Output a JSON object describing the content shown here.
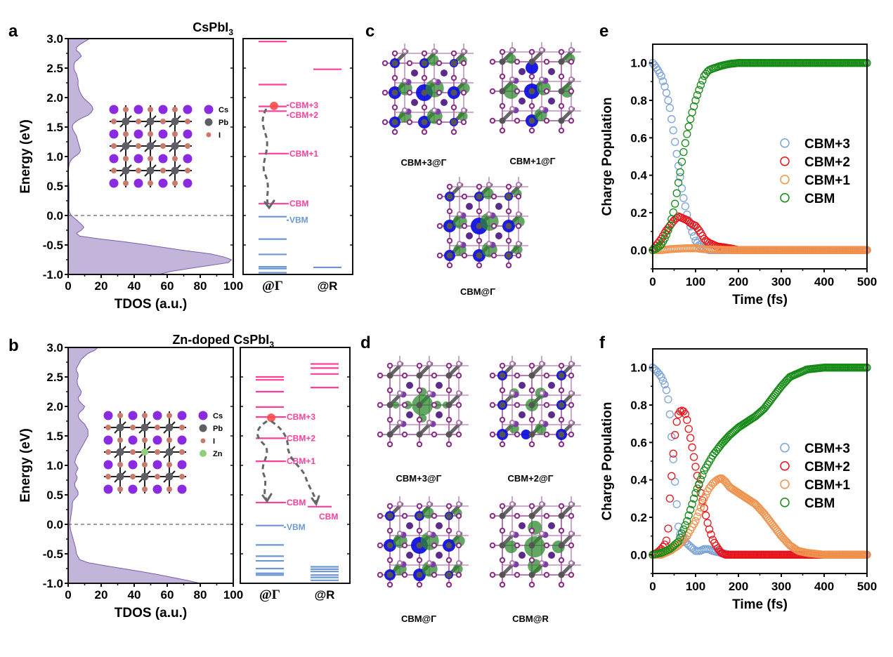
{
  "figure": {
    "panel_labels": [
      "a",
      "b",
      "c",
      "d",
      "e",
      "f"
    ]
  },
  "chart_data": [
    {
      "id": "a",
      "type": "area",
      "title": "CsPbI",
      "title_sub": "3",
      "xlabel": "TDOS (a.u.)",
      "ylabel": "Energy (eV)",
      "xlim": [
        0,
        100
      ],
      "ylim": [
        -1.0,
        3.0
      ],
      "xticks": [
        "0",
        "20",
        "40",
        "60",
        "80",
        "100"
      ],
      "yticks": [
        "3.0",
        "2.5",
        "2.0",
        "1.5",
        "1.0",
        "0.5",
        "0.0",
        "-0.5",
        "-1.0"
      ],
      "fermi_line": 0.0,
      "fill_color": "#c3b5d9",
      "line_color": "#7a5cae",
      "energy": [
        3.0,
        2.95,
        2.9,
        2.85,
        2.8,
        2.75,
        2.7,
        2.65,
        2.6,
        2.55,
        2.5,
        2.45,
        2.4,
        2.3,
        2.2,
        2.1,
        2.0,
        1.95,
        1.9,
        1.85,
        1.8,
        1.75,
        1.7,
        1.65,
        1.6,
        1.55,
        1.5,
        1.45,
        1.4,
        1.35,
        1.3,
        1.25,
        1.2,
        1.15,
        1.1,
        1.05,
        1.0,
        0.95,
        0.9,
        0.85,
        0.8,
        0.7,
        0.6,
        0.5,
        0.4,
        0.3,
        0.2,
        0.1,
        0.05,
        0.0,
        -0.05,
        -0.1,
        -0.15,
        -0.2,
        -0.25,
        -0.3,
        -0.35,
        -0.4,
        -0.45,
        -0.5,
        -0.55,
        -0.6,
        -0.65,
        -0.7,
        -0.75,
        -0.8,
        -0.85,
        -0.9,
        -0.95,
        -1.0
      ],
      "tdos": [
        13,
        10,
        7,
        5,
        5,
        7,
        8,
        6,
        4,
        3.5,
        3.5,
        4,
        5,
        6,
        6,
        7,
        9,
        11,
        13,
        14.5,
        15,
        14,
        12,
        8,
        5,
        3,
        2.5,
        3,
        4,
        5,
        5.5,
        6,
        6.5,
        7,
        7.5,
        6.5,
        4,
        2,
        1,
        0.5,
        0.3,
        0.2,
        0.3,
        0.5,
        0.6,
        0.6,
        0.5,
        0.5,
        0.8,
        2,
        4,
        6,
        8,
        9.5,
        8,
        5,
        7,
        20,
        35,
        48,
        60,
        72,
        86,
        94,
        99,
        97,
        85,
        73,
        62,
        55
      ]
    },
    {
      "id": "a-levels",
      "type": "levels",
      "ylim": [
        -1.0,
        3.0
      ],
      "k_points": [
        "@Γ",
        "@R"
      ],
      "cb_color": "#ff3e9a",
      "vb_color": "#6c97d3",
      "gamma_cb": [
        2.95,
        2.22,
        1.85,
        1.77,
        1.05,
        0.2
      ],
      "gamma_vb": [
        -0.02,
        -0.4,
        -0.66,
        -0.87,
        -0.9,
        -0.97
      ],
      "r_cb": [
        2.48
      ],
      "r_vb": [
        -0.88
      ],
      "labels": [
        {
          "text": "CBM+3",
          "e": 1.87
        },
        {
          "text": "CBM+2",
          "e": 1.7
        },
        {
          "text": "CBM+1",
          "e": 1.05
        },
        {
          "text": "CBM",
          "e": 0.2
        },
        {
          "text": "VBM",
          "e": -0.08,
          "kind": "vb"
        }
      ]
    },
    {
      "id": "b",
      "type": "area",
      "title": "Zn-doped CsPbI",
      "title_sub": "3",
      "xlabel": "TDOS (a.u.)",
      "ylabel": "Energy (eV)",
      "xlim": [
        0,
        100
      ],
      "ylim": [
        -1.0,
        3.0
      ],
      "xticks": [
        "0",
        "20",
        "40",
        "60",
        "80",
        "100"
      ],
      "yticks": [
        "3.0",
        "2.5",
        "2.0",
        "1.5",
        "1.0",
        "0.5",
        "0.0",
        "-0.5",
        "-1.0"
      ],
      "fermi_line": 0.0,
      "fill_color": "#c3b5d9",
      "line_color": "#7a5cae",
      "energy": [
        3.0,
        2.95,
        2.9,
        2.85,
        2.8,
        2.75,
        2.7,
        2.65,
        2.6,
        2.55,
        2.5,
        2.45,
        2.4,
        2.35,
        2.3,
        2.25,
        2.2,
        2.15,
        2.1,
        2.05,
        2.0,
        1.95,
        1.9,
        1.85,
        1.8,
        1.75,
        1.7,
        1.65,
        1.6,
        1.55,
        1.5,
        1.45,
        1.4,
        1.35,
        1.3,
        1.25,
        1.2,
        1.15,
        1.1,
        1.05,
        1.0,
        0.95,
        0.9,
        0.85,
        0.8,
        0.75,
        0.7,
        0.65,
        0.6,
        0.55,
        0.5,
        0.45,
        0.4,
        0.35,
        0.3,
        0.2,
        0.1,
        0.0,
        -0.1,
        -0.2,
        -0.3,
        -0.4,
        -0.5,
        -0.55,
        -0.6,
        -0.65,
        -0.7,
        -0.75,
        -0.8,
        -0.85,
        -0.9,
        -0.95,
        -1.0
      ],
      "tdos": [
        18,
        16,
        12,
        10,
        8,
        7,
        6,
        5,
        5,
        6,
        6,
        5.5,
        5.5,
        6,
        7,
        8,
        7.5,
        6,
        6.5,
        8,
        10,
        9,
        7,
        6,
        6.5,
        8,
        10,
        11,
        12,
        12,
        12,
        11,
        10,
        9,
        8,
        7,
        6,
        5,
        4.5,
        4,
        5,
        6,
        5,
        4.5,
        5.5,
        5,
        4,
        4,
        5,
        6,
        6,
        4.5,
        3,
        2.5,
        2.5,
        2,
        1.5,
        1,
        1.5,
        2.5,
        3.5,
        4.5,
        5,
        6,
        7,
        12,
        22,
        33,
        44,
        54,
        63,
        72,
        80
      ]
    },
    {
      "id": "b-levels",
      "type": "levels",
      "ylim": [
        -1.0,
        3.0
      ],
      "k_points": [
        "@Γ",
        "@R"
      ],
      "cb_color": "#ff3e9a",
      "vb_color": "#6c97d3",
      "gamma_cb": [
        2.5,
        2.45,
        2.25,
        1.99,
        1.82,
        1.46,
        1.07,
        0.37
      ],
      "gamma_vb": [
        -0.02,
        -0.35,
        -0.54,
        -0.62,
        -0.75,
        -0.83,
        -0.86
      ],
      "r_cb": [
        2.72,
        2.65,
        2.55,
        2.32
      ],
      "r_cb_label": "CBM",
      "r_cbm": 0.3,
      "r_vb": [
        -0.72,
        -0.76,
        -0.8,
        -0.86,
        -0.9,
        -0.95
      ],
      "labels": [
        {
          "text": "CBM+3",
          "e": 1.82
        },
        {
          "text": "CBM+2",
          "e": 1.46
        },
        {
          "text": "CBM+1",
          "e": 1.07
        },
        {
          "text": "CBM",
          "e": 0.37
        },
        {
          "text": "VBM",
          "e": -0.05,
          "kind": "vb"
        }
      ]
    },
    {
      "id": "e",
      "type": "scatter",
      "xlabel": "Time (fs)",
      "ylabel": "Charge Population",
      "xlim": [
        0,
        500
      ],
      "ylim": [
        -0.1,
        1.1
      ],
      "xticks": [
        "0",
        "100",
        "200",
        "300",
        "400",
        "500"
      ],
      "yticks": [
        "1.0",
        "0.8",
        "0.6",
        "0.4",
        "0.2",
        "0.0"
      ],
      "legend_position": "center-right",
      "series": [
        {
          "name": "CBM+3",
          "color": "#7aa3d9",
          "x": [
            0,
            10,
            20,
            30,
            40,
            50,
            60,
            70,
            80,
            90,
            100,
            110,
            120,
            130,
            150,
            200,
            300,
            400,
            500
          ],
          "y": [
            1.0,
            0.97,
            0.93,
            0.86,
            0.76,
            0.61,
            0.45,
            0.3,
            0.19,
            0.11,
            0.05,
            0.02,
            0.01,
            0.0,
            0.0,
            0.0,
            0.0,
            0.0,
            0.0
          ]
        },
        {
          "name": "CBM+2",
          "color": "#e8141a",
          "x": [
            0,
            10,
            20,
            30,
            40,
            50,
            60,
            70,
            80,
            90,
            100,
            110,
            120,
            130,
            150,
            180,
            200,
            300,
            500
          ],
          "y": [
            0.0,
            0.03,
            0.06,
            0.1,
            0.13,
            0.16,
            0.18,
            0.17,
            0.16,
            0.14,
            0.13,
            0.1,
            0.06,
            0.04,
            0.02,
            0.01,
            0.0,
            0.0,
            0.0
          ]
        },
        {
          "name": "CBM+1",
          "color": "#f0934e",
          "x": [
            0,
            20,
            40,
            60,
            80,
            100,
            120,
            150,
            200,
            300,
            500
          ],
          "y": [
            0.0,
            0.0,
            0.005,
            0.008,
            0.01,
            0.01,
            0.005,
            0.002,
            0.0,
            0.0,
            0.0
          ]
        },
        {
          "name": "CBM",
          "color": "#178a17",
          "x": [
            0,
            10,
            20,
            30,
            40,
            50,
            60,
            70,
            80,
            90,
            100,
            110,
            120,
            130,
            140,
            160,
            180,
            200,
            250,
            300,
            400,
            500
          ],
          "y": [
            0.0,
            0.01,
            0.03,
            0.07,
            0.13,
            0.22,
            0.36,
            0.5,
            0.62,
            0.72,
            0.8,
            0.87,
            0.93,
            0.96,
            0.97,
            0.985,
            0.995,
            1.0,
            1.0,
            1.0,
            1.0,
            1.0
          ]
        }
      ]
    },
    {
      "id": "f",
      "type": "scatter",
      "xlabel": "Time (fs)",
      "ylabel": "Charge Population",
      "xlim": [
        0,
        500
      ],
      "ylim": [
        -0.1,
        1.1
      ],
      "xticks": [
        "0",
        "100",
        "200",
        "300",
        "400",
        "500"
      ],
      "yticks": [
        "1.0",
        "0.8",
        "0.6",
        "0.4",
        "0.2",
        "0.0"
      ],
      "legend_position": "center-right",
      "series": [
        {
          "name": "CBM+3",
          "color": "#7aa3d9",
          "x": [
            0,
            10,
            20,
            30,
            35,
            40,
            45,
            50,
            55,
            60,
            65,
            70,
            80,
            90,
            100,
            110,
            120,
            130,
            140,
            160,
            180,
            200,
            300,
            400,
            500
          ],
          "y": [
            1.0,
            0.98,
            0.95,
            0.9,
            0.85,
            0.75,
            0.6,
            0.45,
            0.3,
            0.15,
            0.1,
            0.09,
            0.06,
            0.04,
            0.02,
            0.02,
            0.03,
            0.03,
            0.02,
            0.01,
            0.0,
            0.0,
            0.0,
            0.0,
            0.0
          ]
        },
        {
          "name": "CBM+2",
          "color": "#e8141a",
          "x": [
            0,
            10,
            20,
            30,
            35,
            40,
            45,
            50,
            55,
            60,
            65,
            70,
            75,
            80,
            90,
            100,
            110,
            120,
            130,
            140,
            150,
            160,
            170,
            200,
            300,
            500
          ],
          "y": [
            0.0,
            0.01,
            0.03,
            0.06,
            0.1,
            0.3,
            0.45,
            0.6,
            0.7,
            0.75,
            0.77,
            0.77,
            0.76,
            0.72,
            0.6,
            0.47,
            0.35,
            0.25,
            0.15,
            0.08,
            0.04,
            0.01,
            0.0,
            0.0,
            0.0,
            0.0
          ]
        },
        {
          "name": "CBM+1",
          "color": "#f0934e",
          "x": [
            0,
            20,
            40,
            60,
            80,
            100,
            110,
            120,
            130,
            140,
            150,
            160,
            170,
            180,
            200,
            220,
            240,
            260,
            280,
            300,
            320,
            340,
            360,
            400,
            500
          ],
          "y": [
            0.0,
            0.0,
            0.02,
            0.05,
            0.1,
            0.18,
            0.24,
            0.3,
            0.35,
            0.38,
            0.4,
            0.41,
            0.39,
            0.36,
            0.33,
            0.3,
            0.27,
            0.22,
            0.16,
            0.1,
            0.05,
            0.02,
            0.01,
            0.0,
            0.0
          ]
        },
        {
          "name": "CBM",
          "color": "#178a17",
          "x": [
            0,
            20,
            40,
            60,
            80,
            100,
            120,
            140,
            160,
            180,
            200,
            220,
            240,
            260,
            280,
            300,
            320,
            340,
            360,
            400,
            450,
            500
          ],
          "y": [
            0.0,
            0.01,
            0.03,
            0.07,
            0.18,
            0.33,
            0.45,
            0.53,
            0.59,
            0.64,
            0.68,
            0.71,
            0.74,
            0.78,
            0.84,
            0.9,
            0.95,
            0.97,
            0.99,
            1.0,
            1.0,
            1.0
          ]
        }
      ]
    }
  ],
  "structure_legend": {
    "cs": "Cs",
    "pb": "Pb",
    "i": "I",
    "zn": "Zn"
  },
  "orbital_captions": {
    "c": [
      "CBM+3@Γ",
      "CBM+1@Γ",
      "CBM@Γ"
    ],
    "d": [
      "CBM+3@Γ",
      "CBM+2@Γ",
      "CBM@Γ",
      "CBM@R"
    ]
  },
  "colors": {
    "cs_atom": "#8a2be2",
    "pb_atom": "#5e5e66",
    "i_atom": "#c87a6c",
    "zn_atom": "#8fd07a",
    "lattice_atom": "#8b2b87",
    "orbital_green": "#2e8a2e",
    "orbital_blue": "#1010e0"
  }
}
